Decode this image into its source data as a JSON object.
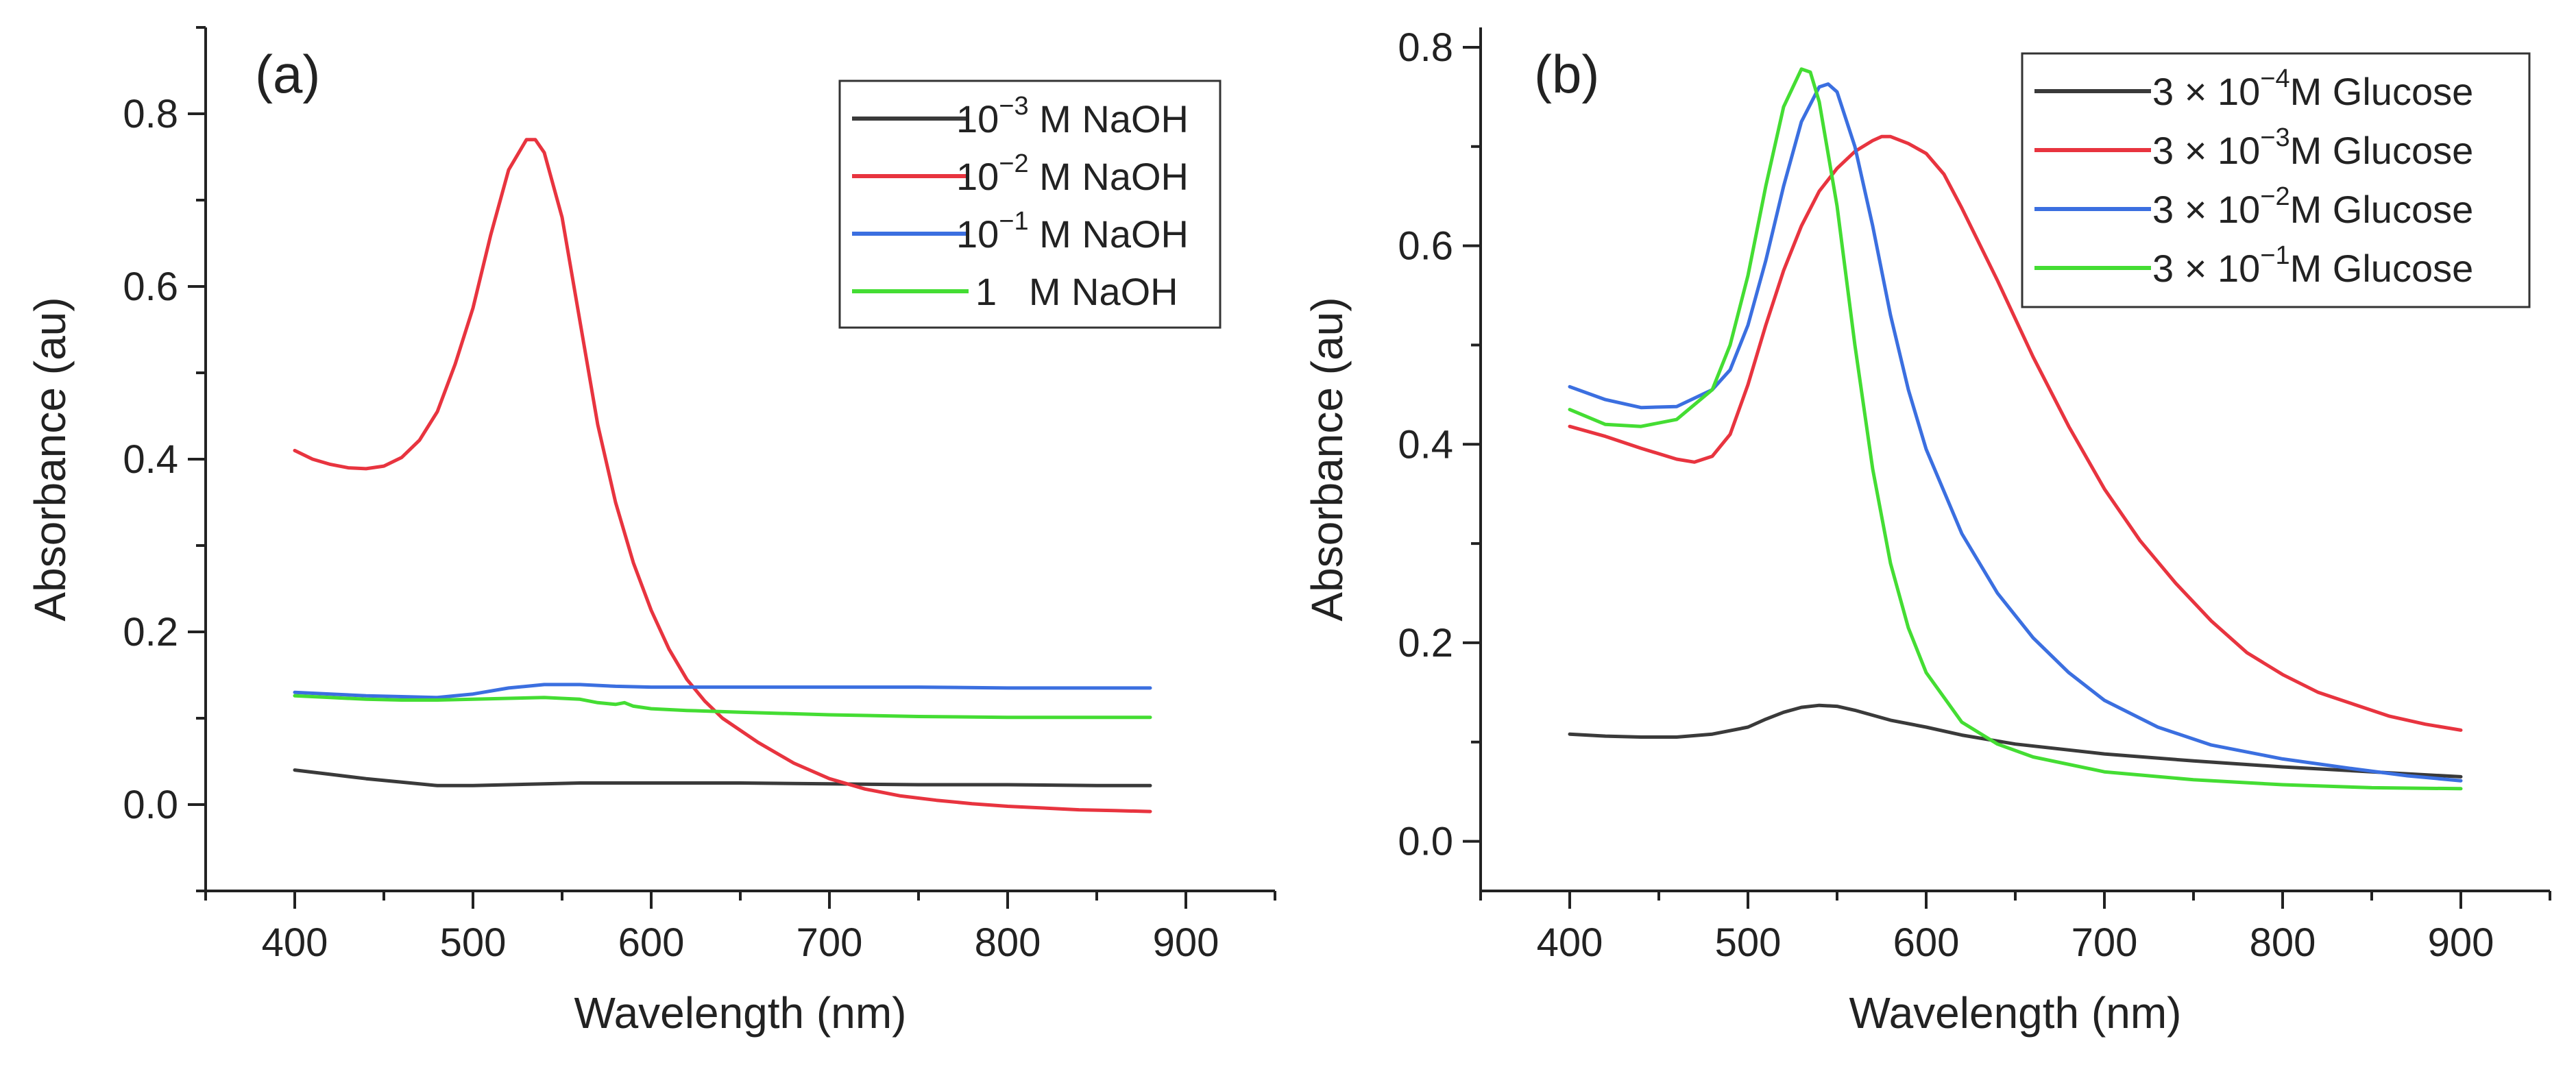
{
  "chart_data": [
    {
      "type": "line",
      "panel_label": "(a)",
      "xlabel": "Wavelength (nm)",
      "ylabel": "Absorbance (au)",
      "xlim": [
        350,
        950
      ],
      "ylim": [
        -0.1,
        0.9
      ],
      "xticks": [
        400,
        500,
        600,
        700,
        800,
        900
      ],
      "xtick_labels": [
        "400",
        "500",
        "600",
        "700",
        "800",
        "900"
      ],
      "yticks": [
        0.0,
        0.2,
        0.4,
        0.6,
        0.8
      ],
      "ytick_labels": [
        "0.0",
        "0.2",
        "0.4",
        "0.6",
        "0.8"
      ],
      "legend_position": "top-right",
      "series": [
        {
          "name": "10^-3 M NaOH",
          "legend": {
            "pre": "10",
            "sup": "−3",
            "post": " M NaOH"
          },
          "color": "#3a3a3a",
          "points": [
            [
              400,
              0.04
            ],
            [
              420,
              0.035
            ],
            [
              440,
              0.03
            ],
            [
              460,
              0.026
            ],
            [
              480,
              0.022
            ],
            [
              500,
              0.022
            ],
            [
              520,
              0.023
            ],
            [
              540,
              0.024
            ],
            [
              560,
              0.025
            ],
            [
              600,
              0.025
            ],
            [
              650,
              0.025
            ],
            [
              700,
              0.024
            ],
            [
              750,
              0.023
            ],
            [
              800,
              0.023
            ],
            [
              850,
              0.022
            ],
            [
              880,
              0.022
            ]
          ]
        },
        {
          "name": "10^-2 M NaOH",
          "legend": {
            "pre": "10",
            "sup": "−2",
            "post": " M NaOH"
          },
          "color": "#e8343f",
          "points": [
            [
              400,
              0.41
            ],
            [
              410,
              0.4
            ],
            [
              420,
              0.394
            ],
            [
              430,
              0.39
            ],
            [
              440,
              0.389
            ],
            [
              450,
              0.392
            ],
            [
              460,
              0.402
            ],
            [
              470,
              0.422
            ],
            [
              480,
              0.455
            ],
            [
              490,
              0.51
            ],
            [
              500,
              0.575
            ],
            [
              510,
              0.66
            ],
            [
              520,
              0.735
            ],
            [
              530,
              0.77
            ],
            [
              535,
              0.77
            ],
            [
              540,
              0.755
            ],
            [
              550,
              0.68
            ],
            [
              560,
              0.56
            ],
            [
              570,
              0.44
            ],
            [
              580,
              0.35
            ],
            [
              590,
              0.28
            ],
            [
              600,
              0.225
            ],
            [
              610,
              0.18
            ],
            [
              620,
              0.145
            ],
            [
              630,
              0.12
            ],
            [
              640,
              0.1
            ],
            [
              660,
              0.072
            ],
            [
              680,
              0.048
            ],
            [
              700,
              0.03
            ],
            [
              720,
              0.018
            ],
            [
              740,
              0.01
            ],
            [
              760,
              0.005
            ],
            [
              780,
              0.001
            ],
            [
              800,
              -0.002
            ],
            [
              820,
              -0.004
            ],
            [
              840,
              -0.006
            ],
            [
              860,
              -0.007
            ],
            [
              880,
              -0.008
            ]
          ]
        },
        {
          "name": "10^-1 M NaOH",
          "legend": {
            "pre": "10",
            "sup": "−1",
            "post": " M NaOH"
          },
          "color": "#3b6fe0",
          "points": [
            [
              400,
              0.13
            ],
            [
              420,
              0.128
            ],
            [
              440,
              0.126
            ],
            [
              460,
              0.125
            ],
            [
              480,
              0.124
            ],
            [
              500,
              0.128
            ],
            [
              520,
              0.135
            ],
            [
              540,
              0.139
            ],
            [
              560,
              0.139
            ],
            [
              580,
              0.137
            ],
            [
              600,
              0.136
            ],
            [
              650,
              0.136
            ],
            [
              700,
              0.136
            ],
            [
              750,
              0.136
            ],
            [
              800,
              0.135
            ],
            [
              850,
              0.135
            ],
            [
              880,
              0.135
            ]
          ]
        },
        {
          "name": "1 M NaOH",
          "legend": {
            "pre": "1",
            "sup": "",
            "post": "   M NaOH",
            "indent": true
          },
          "color": "#44dd33",
          "points": [
            [
              400,
              0.126
            ],
            [
              420,
              0.124
            ],
            [
              440,
              0.122
            ],
            [
              460,
              0.121
            ],
            [
              480,
              0.121
            ],
            [
              500,
              0.122
            ],
            [
              520,
              0.123
            ],
            [
              540,
              0.124
            ],
            [
              560,
              0.122
            ],
            [
              570,
              0.118
            ],
            [
              580,
              0.116
            ],
            [
              585,
              0.118
            ],
            [
              590,
              0.114
            ],
            [
              600,
              0.111
            ],
            [
              620,
              0.109
            ],
            [
              650,
              0.107
            ],
            [
              700,
              0.104
            ],
            [
              750,
              0.102
            ],
            [
              800,
              0.101
            ],
            [
              850,
              0.101
            ],
            [
              880,
              0.101
            ]
          ]
        }
      ]
    },
    {
      "type": "line",
      "panel_label": "(b)",
      "xlabel": "Wavelength (nm)",
      "ylabel": "Absorbance (au)",
      "xlim": [
        350,
        950
      ],
      "ylim": [
        -0.05,
        0.82
      ],
      "xticks": [
        400,
        500,
        600,
        700,
        800,
        900
      ],
      "xtick_labels": [
        "400",
        "500",
        "600",
        "700",
        "800",
        "900"
      ],
      "yticks": [
        0.0,
        0.2,
        0.4,
        0.6,
        0.8
      ],
      "ytick_labels": [
        "0.0",
        "0.2",
        "0.4",
        "0.6",
        "0.8"
      ],
      "legend_position": "top-right",
      "series": [
        {
          "name": "3 × 10^-4 M Glucose",
          "legend": {
            "pre": "3 × 10",
            "sup": "−4",
            "post": "M Glucose"
          },
          "color": "#3a3a3a",
          "points": [
            [
              400,
              0.108
            ],
            [
              420,
              0.106
            ],
            [
              440,
              0.105
            ],
            [
              460,
              0.105
            ],
            [
              480,
              0.108
            ],
            [
              500,
              0.115
            ],
            [
              510,
              0.123
            ],
            [
              520,
              0.13
            ],
            [
              530,
              0.135
            ],
            [
              540,
              0.137
            ],
            [
              550,
              0.136
            ],
            [
              560,
              0.132
            ],
            [
              580,
              0.122
            ],
            [
              600,
              0.115
            ],
            [
              620,
              0.107
            ],
            [
              650,
              0.098
            ],
            [
              700,
              0.088
            ],
            [
              750,
              0.081
            ],
            [
              800,
              0.075
            ],
            [
              850,
              0.07
            ],
            [
              900,
              0.065
            ]
          ]
        },
        {
          "name": "3 × 10^-3 M Glucose",
          "legend": {
            "pre": "3 × 10",
            "sup": "−3",
            "post": "M Glucose"
          },
          "color": "#e8343f",
          "points": [
            [
              400,
              0.418
            ],
            [
              420,
              0.408
            ],
            [
              440,
              0.396
            ],
            [
              460,
              0.385
            ],
            [
              470,
              0.382
            ],
            [
              480,
              0.388
            ],
            [
              490,
              0.41
            ],
            [
              500,
              0.46
            ],
            [
              510,
              0.52
            ],
            [
              520,
              0.575
            ],
            [
              530,
              0.62
            ],
            [
              540,
              0.655
            ],
            [
              550,
              0.678
            ],
            [
              560,
              0.695
            ],
            [
              570,
              0.706
            ],
            [
              575,
              0.71
            ],
            [
              580,
              0.71
            ],
            [
              590,
              0.703
            ],
            [
              600,
              0.693
            ],
            [
              610,
              0.672
            ],
            [
              620,
              0.638
            ],
            [
              640,
              0.565
            ],
            [
              660,
              0.488
            ],
            [
              680,
              0.418
            ],
            [
              700,
              0.355
            ],
            [
              720,
              0.303
            ],
            [
              740,
              0.26
            ],
            [
              760,
              0.222
            ],
            [
              780,
              0.19
            ],
            [
              800,
              0.168
            ],
            [
              820,
              0.15
            ],
            [
              840,
              0.138
            ],
            [
              860,
              0.126
            ],
            [
              880,
              0.118
            ],
            [
              900,
              0.112
            ]
          ]
        },
        {
          "name": "3 × 10^-2 M Glucose",
          "legend": {
            "pre": "3 × 10",
            "sup": "−2",
            "post": "M Glucose"
          },
          "color": "#3b6fe0",
          "points": [
            [
              400,
              0.458
            ],
            [
              420,
              0.445
            ],
            [
              440,
              0.437
            ],
            [
              460,
              0.438
            ],
            [
              480,
              0.455
            ],
            [
              490,
              0.475
            ],
            [
              500,
              0.52
            ],
            [
              510,
              0.585
            ],
            [
              520,
              0.66
            ],
            [
              530,
              0.725
            ],
            [
              540,
              0.76
            ],
            [
              545,
              0.763
            ],
            [
              550,
              0.755
            ],
            [
              560,
              0.7
            ],
            [
              570,
              0.62
            ],
            [
              580,
              0.53
            ],
            [
              590,
              0.455
            ],
            [
              600,
              0.395
            ],
            [
              620,
              0.31
            ],
            [
              640,
              0.25
            ],
            [
              660,
              0.205
            ],
            [
              680,
              0.17
            ],
            [
              700,
              0.142
            ],
            [
              730,
              0.115
            ],
            [
              760,
              0.097
            ],
            [
              800,
              0.083
            ],
            [
              840,
              0.073
            ],
            [
              870,
              0.066
            ],
            [
              900,
              0.061
            ]
          ]
        },
        {
          "name": "3 × 10^-1 M Glucose",
          "legend": {
            "pre": "3 × 10",
            "sup": "−1",
            "post": "M Glucose"
          },
          "color": "#44dd33",
          "points": [
            [
              400,
              0.435
            ],
            [
              420,
              0.42
            ],
            [
              440,
              0.418
            ],
            [
              460,
              0.425
            ],
            [
              480,
              0.455
            ],
            [
              490,
              0.5
            ],
            [
              500,
              0.57
            ],
            [
              510,
              0.66
            ],
            [
              520,
              0.74
            ],
            [
              530,
              0.778
            ],
            [
              535,
              0.775
            ],
            [
              540,
              0.745
            ],
            [
              550,
              0.64
            ],
            [
              560,
              0.5
            ],
            [
              570,
              0.375
            ],
            [
              580,
              0.28
            ],
            [
              590,
              0.215
            ],
            [
              600,
              0.17
            ],
            [
              620,
              0.12
            ],
            [
              640,
              0.098
            ],
            [
              660,
              0.085
            ],
            [
              700,
              0.07
            ],
            [
              750,
              0.062
            ],
            [
              800,
              0.057
            ],
            [
              850,
              0.054
            ],
            [
              900,
              0.053
            ]
          ]
        }
      ]
    }
  ]
}
